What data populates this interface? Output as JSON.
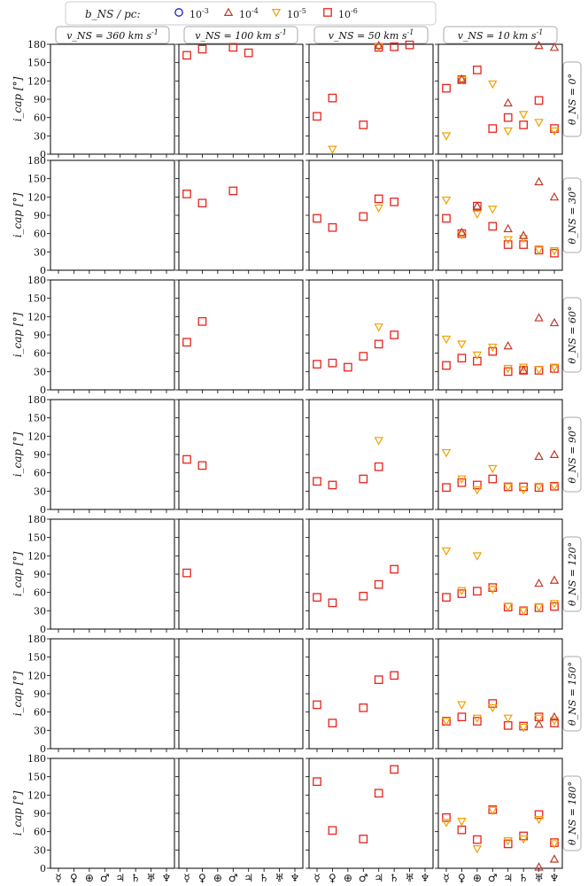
{
  "chart_data": {
    "type": "scatter",
    "legend": {
      "title": "b_NS / pc:",
      "position": "top",
      "entries": [
        {
          "label": "10^-3",
          "marker": "circle",
          "color": "#1f1fcc"
        },
        {
          "label": "10^-4",
          "marker": "triangle-up",
          "color": "#c0392b"
        },
        {
          "label": "10^-5",
          "marker": "triangle-down",
          "color": "#f2a000"
        },
        {
          "label": "10^-6",
          "marker": "square",
          "color": "#e8231c"
        }
      ]
    },
    "columns": [
      "v_NS = 360 km s^-1",
      "v_NS = 100 km s^-1",
      "v_NS = 50 km s^-1",
      "v_NS = 10 km s^-1"
    ],
    "rows": [
      "θ_NS = 0°",
      "θ_NS = 30°",
      "θ_NS = 60°",
      "θ_NS = 90°",
      "θ_NS = 120°",
      "θ_NS = 150°",
      "θ_NS = 180°"
    ],
    "ylabel": "i_cap [°]",
    "ylim": [
      0,
      180
    ],
    "yticks": [
      "0",
      "30",
      "60",
      "90",
      "120",
      "150",
      "180"
    ],
    "xcategories": [
      "☿",
      "♀",
      "⊕",
      "♂",
      "♃",
      "♄",
      "♅",
      "♆"
    ],
    "panels": [
      [
        {
          "10^-6": [],
          "10^-5": [],
          "10^-4": []
        },
        {
          "10^-6": [
            [
              0,
              162
            ],
            [
              1,
              172
            ],
            [
              3,
              175
            ],
            [
              4,
              166
            ]
          ],
          "10^-5": [],
          "10^-4": []
        },
        {
          "10^-6": [
            [
              0,
              62
            ],
            [
              1,
              92
            ],
            [
              3,
              48
            ],
            [
              4,
              175
            ],
            [
              5,
              176
            ],
            [
              6,
              179
            ]
          ],
          "10^-5": [
            [
              1,
              8
            ],
            [
              4,
              176
            ]
          ],
          "10^-4": [
            [
              4,
              178
            ]
          ]
        },
        {
          "10^-6": [
            [
              0,
              108
            ],
            [
              1,
              122
            ],
            [
              2,
              138
            ],
            [
              3,
              42
            ],
            [
              4,
              60
            ],
            [
              5,
              48
            ],
            [
              6,
              88
            ],
            [
              7,
              42
            ]
          ],
          "10^-5": [
            [
              0,
              30
            ],
            [
              1,
              122
            ],
            [
              3,
              115
            ],
            [
              4,
              38
            ],
            [
              5,
              65
            ],
            [
              6,
              52
            ],
            [
              7,
              38
            ]
          ],
          "10^-4": [
            [
              1,
              123
            ],
            [
              4,
              84
            ],
            [
              6,
              178
            ],
            [
              7,
              175
            ]
          ]
        }
      ],
      [
        {
          "10^-6": [],
          "10^-5": [],
          "10^-4": []
        },
        {
          "10^-6": [
            [
              0,
              125
            ],
            [
              1,
              110
            ],
            [
              3,
              130
            ]
          ],
          "10^-5": [],
          "10^-4": []
        },
        {
          "10^-6": [
            [
              0,
              85
            ],
            [
              1,
              70
            ],
            [
              3,
              88
            ],
            [
              4,
              117
            ],
            [
              5,
              112
            ]
          ],
          "10^-5": [
            [
              4,
              102
            ]
          ],
          "10^-4": []
        },
        {
          "10^-6": [
            [
              0,
              85
            ],
            [
              1,
              60
            ],
            [
              2,
              105
            ],
            [
              3,
              72
            ],
            [
              4,
              42
            ],
            [
              5,
              42
            ],
            [
              6,
              33
            ],
            [
              7,
              28
            ]
          ],
          "10^-5": [
            [
              0,
              115
            ],
            [
              1,
              58
            ],
            [
              2,
              92
            ],
            [
              3,
              100
            ],
            [
              4,
              50
            ],
            [
              5,
              52
            ],
            [
              6,
              33
            ],
            [
              7,
              32
            ]
          ],
          "10^-4": [
            [
              1,
              62
            ],
            [
              2,
              105
            ],
            [
              4,
              68
            ],
            [
              5,
              57
            ],
            [
              6,
              145
            ],
            [
              7,
              120
            ]
          ]
        }
      ],
      [
        {
          "10^-6": [],
          "10^-5": [],
          "10^-4": []
        },
        {
          "10^-6": [
            [
              0,
              78
            ],
            [
              1,
              112
            ]
          ],
          "10^-5": [],
          "10^-4": []
        },
        {
          "10^-6": [
            [
              0,
              42
            ],
            [
              1,
              44
            ],
            [
              2,
              37
            ],
            [
              3,
              55
            ],
            [
              4,
              75
            ],
            [
              5,
              90
            ]
          ],
          "10^-5": [
            [
              4,
              103
            ]
          ],
          "10^-4": []
        },
        {
          "10^-6": [
            [
              0,
              40
            ],
            [
              1,
              52
            ],
            [
              2,
              47
            ],
            [
              3,
              63
            ],
            [
              4,
              30
            ],
            [
              5,
              32
            ],
            [
              6,
              32
            ],
            [
              7,
              35
            ]
          ],
          "10^-5": [
            [
              0,
              83
            ],
            [
              1,
              75
            ],
            [
              2,
              57
            ],
            [
              3,
              70
            ],
            [
              4,
              35
            ],
            [
              5,
              37
            ],
            [
              6,
              33
            ],
            [
              7,
              37
            ]
          ],
          "10^-4": [
            [
              4,
              72
            ],
            [
              5,
              32
            ],
            [
              6,
              118
            ],
            [
              7,
              110
            ]
          ]
        }
      ],
      [
        {
          "10^-6": [],
          "10^-5": [],
          "10^-4": []
        },
        {
          "10^-6": [
            [
              0,
              82
            ],
            [
              1,
              72
            ]
          ],
          "10^-5": [],
          "10^-4": []
        },
        {
          "10^-6": [
            [
              0,
              46
            ],
            [
              1,
              40
            ],
            [
              3,
              50
            ],
            [
              4,
              70
            ]
          ],
          "10^-5": [
            [
              4,
              113
            ]
          ],
          "10^-4": []
        },
        {
          "10^-6": [
            [
              0,
              36
            ],
            [
              1,
              44
            ],
            [
              2,
              40
            ],
            [
              3,
              50
            ],
            [
              4,
              37
            ],
            [
              5,
              37
            ],
            [
              6,
              36
            ],
            [
              7,
              38
            ]
          ],
          "10^-5": [
            [
              0,
              93
            ],
            [
              1,
              50
            ],
            [
              2,
              32
            ],
            [
              3,
              67
            ],
            [
              4,
              37
            ],
            [
              5,
              32
            ],
            [
              6,
              38
            ],
            [
              7,
              38
            ]
          ],
          "10^-4": [
            [
              6,
              87
            ],
            [
              7,
              90
            ]
          ]
        }
      ],
      [
        {
          "10^-6": [],
          "10^-5": [],
          "10^-4": []
        },
        {
          "10^-6": [
            [
              0,
              92
            ]
          ],
          "10^-5": [],
          "10^-4": []
        },
        {
          "10^-6": [
            [
              0,
              52
            ],
            [
              1,
              43
            ],
            [
              3,
              54
            ],
            [
              4,
              73
            ],
            [
              5,
              98
            ]
          ],
          "10^-5": [],
          "10^-4": []
        },
        {
          "10^-6": [
            [
              0,
              52
            ],
            [
              1,
              58
            ],
            [
              2,
              62
            ],
            [
              3,
              68
            ],
            [
              4,
              36
            ],
            [
              5,
              30
            ],
            [
              6,
              35
            ],
            [
              7,
              37
            ]
          ],
          "10^-5": [
            [
              0,
              128
            ],
            [
              1,
              63
            ],
            [
              2,
              120
            ],
            [
              3,
              65
            ],
            [
              4,
              37
            ],
            [
              5,
              30
            ],
            [
              6,
              36
            ],
            [
              7,
              42
            ]
          ],
          "10^-4": [
            [
              6,
              75
            ],
            [
              7,
              80
            ]
          ]
        }
      ],
      [
        {
          "10^-6": [],
          "10^-5": [],
          "10^-4": []
        },
        {
          "10^-6": [],
          "10^-5": [],
          "10^-4": []
        },
        {
          "10^-6": [
            [
              0,
              72
            ],
            [
              1,
              42
            ],
            [
              3,
              67
            ],
            [
              4,
              113
            ],
            [
              5,
              120
            ]
          ],
          "10^-5": [],
          "10^-4": []
        },
        {
          "10^-6": [
            [
              0,
              45
            ],
            [
              1,
              52
            ],
            [
              2,
              45
            ],
            [
              3,
              74
            ],
            [
              4,
              38
            ],
            [
              5,
              37
            ],
            [
              6,
              52
            ],
            [
              7,
              42
            ]
          ],
          "10^-5": [
            [
              0,
              45
            ],
            [
              1,
              72
            ],
            [
              2,
              50
            ],
            [
              3,
              67
            ],
            [
              4,
              50
            ],
            [
              5,
              35
            ],
            [
              6,
              50
            ],
            [
              7,
              46
            ]
          ],
          "10^-4": [
            [
              6,
              40
            ],
            [
              7,
              52
            ]
          ]
        }
      ],
      [
        {
          "10^-6": [],
          "10^-5": [],
          "10^-4": []
        },
        {
          "10^-6": [],
          "10^-5": [],
          "10^-4": []
        },
        {
          "10^-6": [
            [
              0,
              142
            ],
            [
              1,
              62
            ],
            [
              3,
              48
            ],
            [
              4,
              123
            ],
            [
              5,
              162
            ]
          ],
          "10^-5": [],
          "10^-4": []
        },
        {
          "10^-6": [
            [
              0,
              83
            ],
            [
              1,
              63
            ],
            [
              2,
              47
            ],
            [
              3,
              96
            ],
            [
              4,
              40
            ],
            [
              5,
              53
            ],
            [
              6,
              88
            ],
            [
              7,
              42
            ]
          ],
          "10^-5": [
            [
              0,
              75
            ],
            [
              1,
              77
            ],
            [
              2,
              32
            ],
            [
              3,
              95
            ],
            [
              4,
              45
            ],
            [
              5,
              48
            ],
            [
              6,
              80
            ],
            [
              7,
              40
            ]
          ],
          "10^-4": [
            [
              6,
              2
            ],
            [
              7,
              15
            ]
          ]
        }
      ]
    ]
  }
}
